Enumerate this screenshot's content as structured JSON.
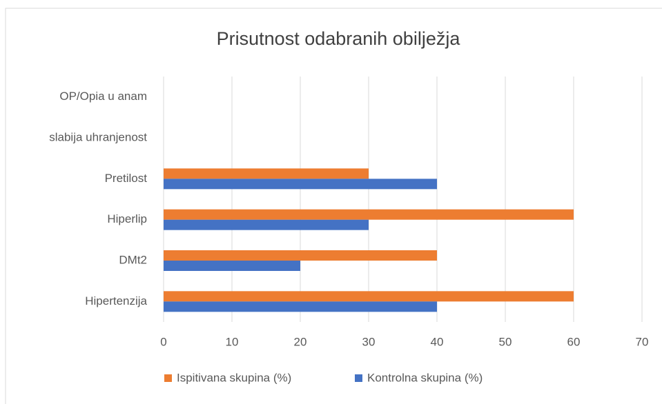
{
  "chart_data": {
    "type": "bar",
    "orientation": "horizontal",
    "title": "Prisutnost odabranih obilježja",
    "categories": [
      "Hipertenzija",
      "DMt2",
      "Hiperlip",
      "Pretilost",
      "slabija uhranjenost",
      "OP/Opia u anam"
    ],
    "series": [
      {
        "name": "Ispitivana skupina (%)",
        "color": "#ed7d31",
        "values": [
          60,
          40,
          60,
          30,
          0,
          0
        ]
      },
      {
        "name": "Kontrolna skupina (%)",
        "color": "#4472c4",
        "values": [
          40,
          20,
          30,
          40,
          0,
          0
        ]
      }
    ],
    "xlim": [
      0,
      70
    ],
    "xticks": [
      0,
      10,
      20,
      30,
      40,
      50,
      60,
      70
    ],
    "grid": true,
    "legend": "bottom"
  }
}
